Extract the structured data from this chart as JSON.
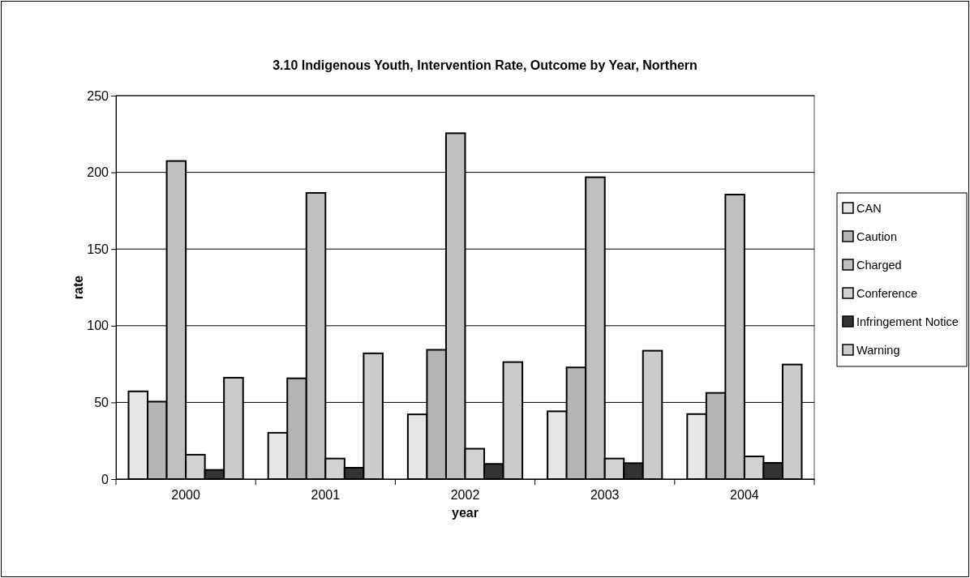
{
  "chart_data": {
    "type": "bar",
    "title": "3.10 Indigenous Youth, Intervention Rate, Outcome by Year, Northern",
    "xlabel": "year",
    "ylabel": "rate",
    "categories": [
      "2000",
      "2001",
      "2002",
      "2003",
      "2004"
    ],
    "series": [
      {
        "name": "CAN",
        "color": "#e6e6e6",
        "values": [
          57.2,
          30.2,
          42.2,
          44.2,
          42.4
        ]
      },
      {
        "name": "Caution",
        "color": "#b4b4b4",
        "values": [
          50.5,
          65.7,
          84.3,
          72.8,
          56.2
        ]
      },
      {
        "name": "Charged",
        "color": "#c0c0c0",
        "values": [
          207.4,
          186.6,
          225.5,
          196.8,
          185.5
        ]
      },
      {
        "name": "Conference",
        "color": "#d2d2d2",
        "values": [
          15.9,
          13.4,
          19.8,
          13.4,
          14.8
        ]
      },
      {
        "name": "Infringement Notice",
        "color": "#333333",
        "values": [
          6.0,
          7.4,
          9.9,
          10.4,
          10.6
        ]
      },
      {
        "name": "Warning",
        "color": "#cccccc",
        "values": [
          66.1,
          82.0,
          76.3,
          83.7,
          74.7
        ]
      }
    ],
    "ylim": [
      0,
      250
    ],
    "yticks": [
      0,
      50,
      100,
      150,
      200,
      250
    ],
    "grid": "y",
    "legend": "right"
  }
}
